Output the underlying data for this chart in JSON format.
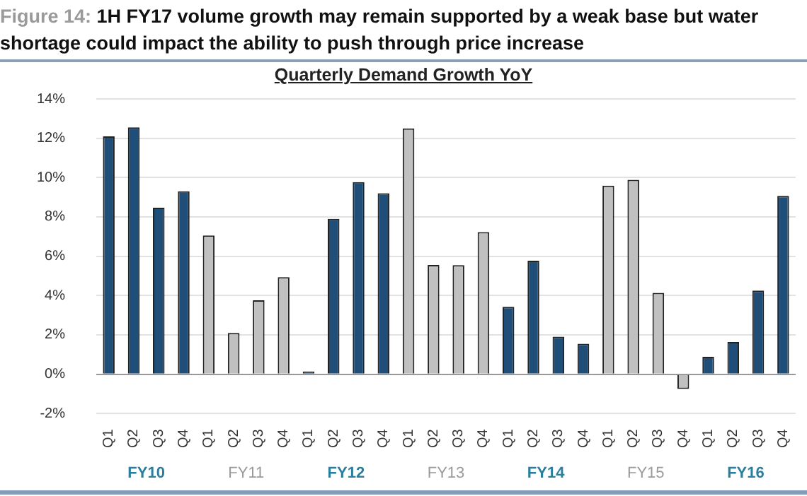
{
  "chart_data": {
    "type": "bar",
    "title": "Figure 14: 1H FY17 volume growth may remain supported by a weak base but water shortage could impact the ability to push through price increase",
    "subtitle": "Quarterly Demand Growth YoY",
    "categories": [
      "Q1",
      "Q2",
      "Q3",
      "Q4",
      "Q1",
      "Q2",
      "Q3",
      "Q4",
      "Q1",
      "Q2",
      "Q3",
      "Q4",
      "Q1",
      "Q2",
      "Q3",
      "Q4",
      "Q1",
      "Q2",
      "Q3",
      "Q4",
      "Q1",
      "Q2",
      "Q3",
      "Q4",
      "Q1",
      "Q2",
      "Q3",
      "Q4"
    ],
    "values": [
      12.1,
      12.55,
      8.47,
      9.3,
      7.06,
      2.1,
      3.76,
      4.94,
      0.14,
      7.9,
      9.77,
      9.2,
      12.5,
      5.56,
      5.55,
      7.23,
      3.43,
      5.77,
      1.91,
      1.55,
      9.59,
      9.89,
      4.14,
      -0.75,
      0.89,
      1.64,
      4.25,
      9.07
    ],
    "colors": [
      "#1f4e79",
      "#1f4e79",
      "#1f4e79",
      "#1f4e79",
      "#c0c0c0",
      "#c0c0c0",
      "#c0c0c0",
      "#c0c0c0",
      "#1f4e79",
      "#1f4e79",
      "#1f4e79",
      "#1f4e79",
      "#c0c0c0",
      "#c0c0c0",
      "#c0c0c0",
      "#c0c0c0",
      "#1f4e79",
      "#1f4e79",
      "#1f4e79",
      "#1f4e79",
      "#c0c0c0",
      "#c0c0c0",
      "#c0c0c0",
      "#c0c0c0",
      "#1f4e79",
      "#1f4e79",
      "#1f4e79",
      "#1f4e79"
    ],
    "ylim": [
      -2,
      14
    ],
    "yticks": [
      {
        "value": -2,
        "label": "-2%"
      },
      {
        "value": 0,
        "label": "0%"
      },
      {
        "value": 2,
        "label": "2%"
      },
      {
        "value": 4,
        "label": "4%"
      },
      {
        "value": 6,
        "label": "6%"
      },
      {
        "value": 8,
        "label": "8%"
      },
      {
        "value": 10,
        "label": "10%"
      },
      {
        "value": 12,
        "label": "12%"
      },
      {
        "value": 14,
        "label": "14%"
      }
    ],
    "grid": "y",
    "annotations": [
      "FY10",
      "FY11",
      "FY12",
      "FY13",
      "FY14",
      "FY15",
      "FY16"
    ]
  }
}
